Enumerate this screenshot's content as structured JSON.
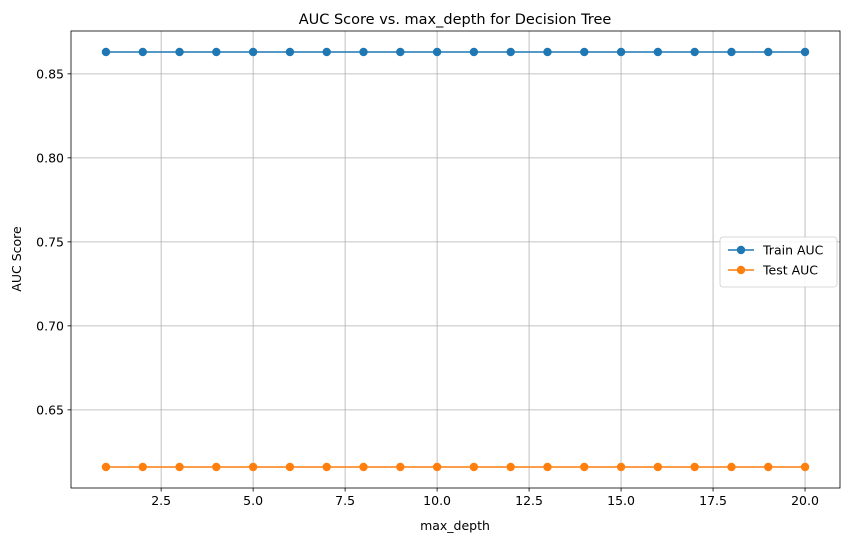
{
  "chart_data": {
    "type": "line",
    "title": "AUC Score vs. max_depth for Decision Tree",
    "xlabel": "max_depth",
    "ylabel": "AUC Score",
    "x": [
      1,
      2,
      3,
      4,
      5,
      6,
      7,
      8,
      9,
      10,
      11,
      12,
      13,
      14,
      15,
      16,
      17,
      18,
      19,
      20
    ],
    "xlim": [
      0.05,
      20.95
    ],
    "ylim": [
      0.6035,
      0.8755
    ],
    "x_ticks": [
      2.5,
      5.0,
      7.5,
      10.0,
      12.5,
      15.0,
      17.5,
      20.0
    ],
    "x_tick_labels": [
      "2.5",
      "5.0",
      "7.5",
      "10.0",
      "12.5",
      "15.0",
      "17.5",
      "20.0"
    ],
    "y_ticks": [
      0.65,
      0.7,
      0.75,
      0.8,
      0.85
    ],
    "y_tick_labels": [
      "0.65",
      "0.70",
      "0.75",
      "0.80",
      "0.85"
    ],
    "grid": true,
    "legend_position": "center-right",
    "series": [
      {
        "name": "Train AUC",
        "color": "#1f77b4",
        "marker": "circle",
        "values": [
          0.863,
          0.863,
          0.863,
          0.863,
          0.863,
          0.863,
          0.863,
          0.863,
          0.863,
          0.863,
          0.863,
          0.863,
          0.863,
          0.863,
          0.863,
          0.863,
          0.863,
          0.863,
          0.863,
          0.863
        ]
      },
      {
        "name": "Test AUC",
        "color": "#ff7f0e",
        "marker": "circle",
        "values": [
          0.616,
          0.616,
          0.616,
          0.616,
          0.616,
          0.616,
          0.616,
          0.616,
          0.616,
          0.616,
          0.616,
          0.616,
          0.616,
          0.616,
          0.616,
          0.616,
          0.616,
          0.616,
          0.616,
          0.616
        ]
      }
    ]
  }
}
